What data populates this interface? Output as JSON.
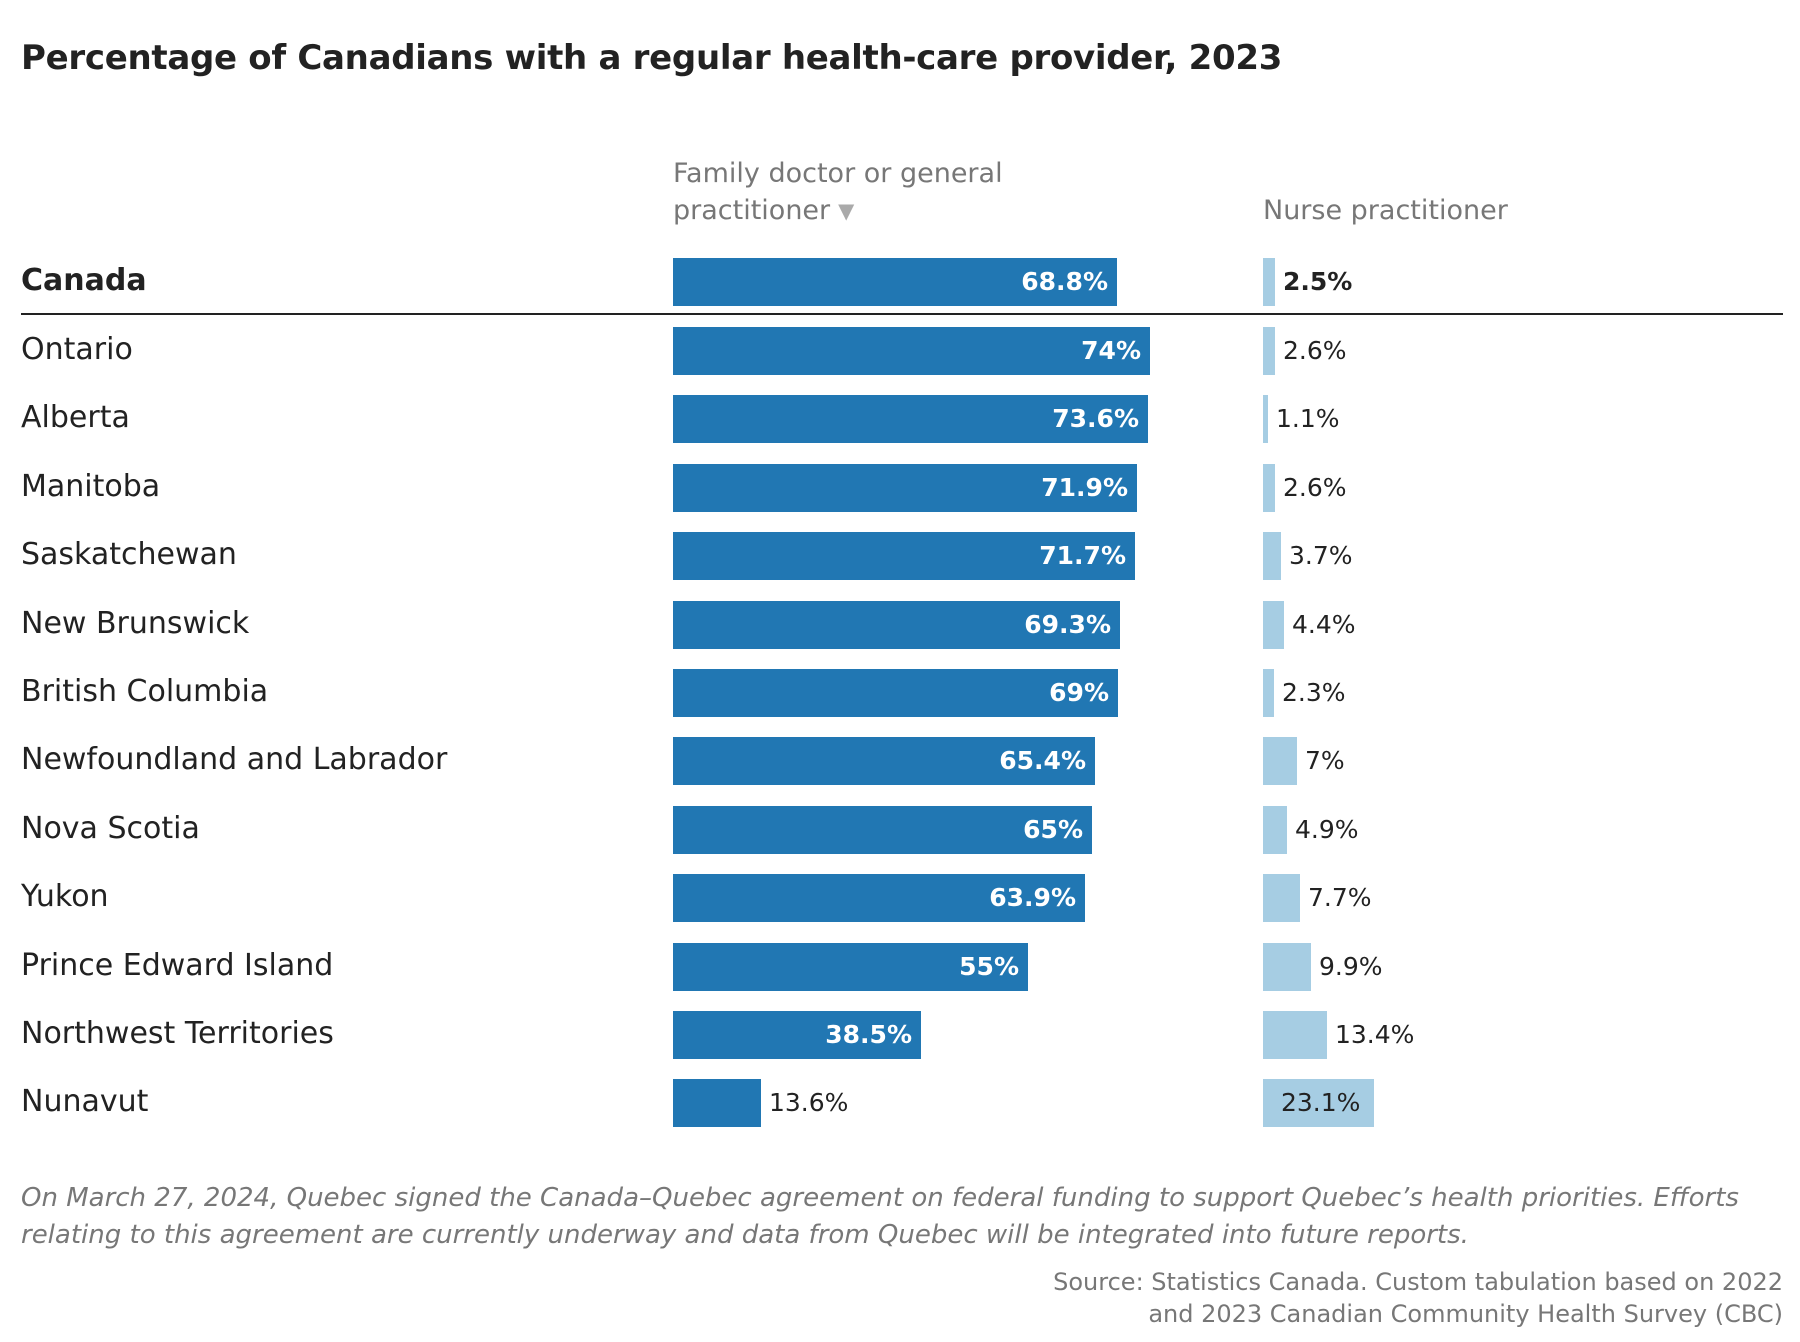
{
  "title": "Percentage of Canadians with a regular health-care provider, 2023",
  "columns": {
    "family": {
      "line1": "Family doctor or general",
      "line2": "practitioner",
      "sort_icon": "sort-descending-icon"
    },
    "nurse": {
      "label": "Nurse practitioner"
    }
  },
  "colors": {
    "family": "#2177b3",
    "nurse": "#a6cde3",
    "text": "#222222",
    "muted": "#777777"
  },
  "note": "On March 27, 2024, Quebec signed the Canada–Quebec agreement on federal funding to support Quebec’s health priorities. Efforts relating to this agreement are currently underway and data from Quebec will be integrated into future reports.",
  "source": {
    "line1": "Source: Statistics Canada. Custom tabulation based on 2022",
    "line2": "and 2023 Canadian Community Health Survey (CBC)"
  },
  "chart_data": {
    "type": "bar",
    "orientation": "horizontal",
    "xlim": [
      0,
      100
    ],
    "categories": [
      "Canada",
      "Ontario",
      "Alberta",
      "Manitoba",
      "Saskatchewan",
      "New Brunswick",
      "British Columbia",
      "Newfoundland and Labrador",
      "Nova Scotia",
      "Yukon",
      "Prince Edward Island",
      "Northwest Territories",
      "Nunavut"
    ],
    "series": [
      {
        "name": "Family doctor or general practitioner",
        "values": [
          68.8,
          74,
          73.6,
          71.9,
          71.7,
          69.3,
          69,
          65.4,
          65,
          63.9,
          55,
          38.5,
          13.6
        ],
        "labels": [
          "68.8%",
          "74%",
          "73.6%",
          "71.9%",
          "71.7%",
          "69.3%",
          "69%",
          "65.4%",
          "65%",
          "63.9%",
          "55%",
          "38.5%",
          "13.6%"
        ]
      },
      {
        "name": "Nurse practitioner",
        "values": [
          2.5,
          2.6,
          1.1,
          2.6,
          3.7,
          4.4,
          2.3,
          7,
          4.9,
          7.7,
          9.9,
          13.4,
          23.1
        ],
        "labels": [
          "2.5%",
          "2.6%",
          "1.1%",
          "2.6%",
          "3.7%",
          "4.4%",
          "2.3%",
          "7%",
          "4.9%",
          "7.7%",
          "9.9%",
          "13.4%",
          "23.1%"
        ]
      }
    ],
    "highlight_category": "Canada",
    "sorted_by": "Family doctor or general practitioner",
    "sort_order": "descending"
  }
}
